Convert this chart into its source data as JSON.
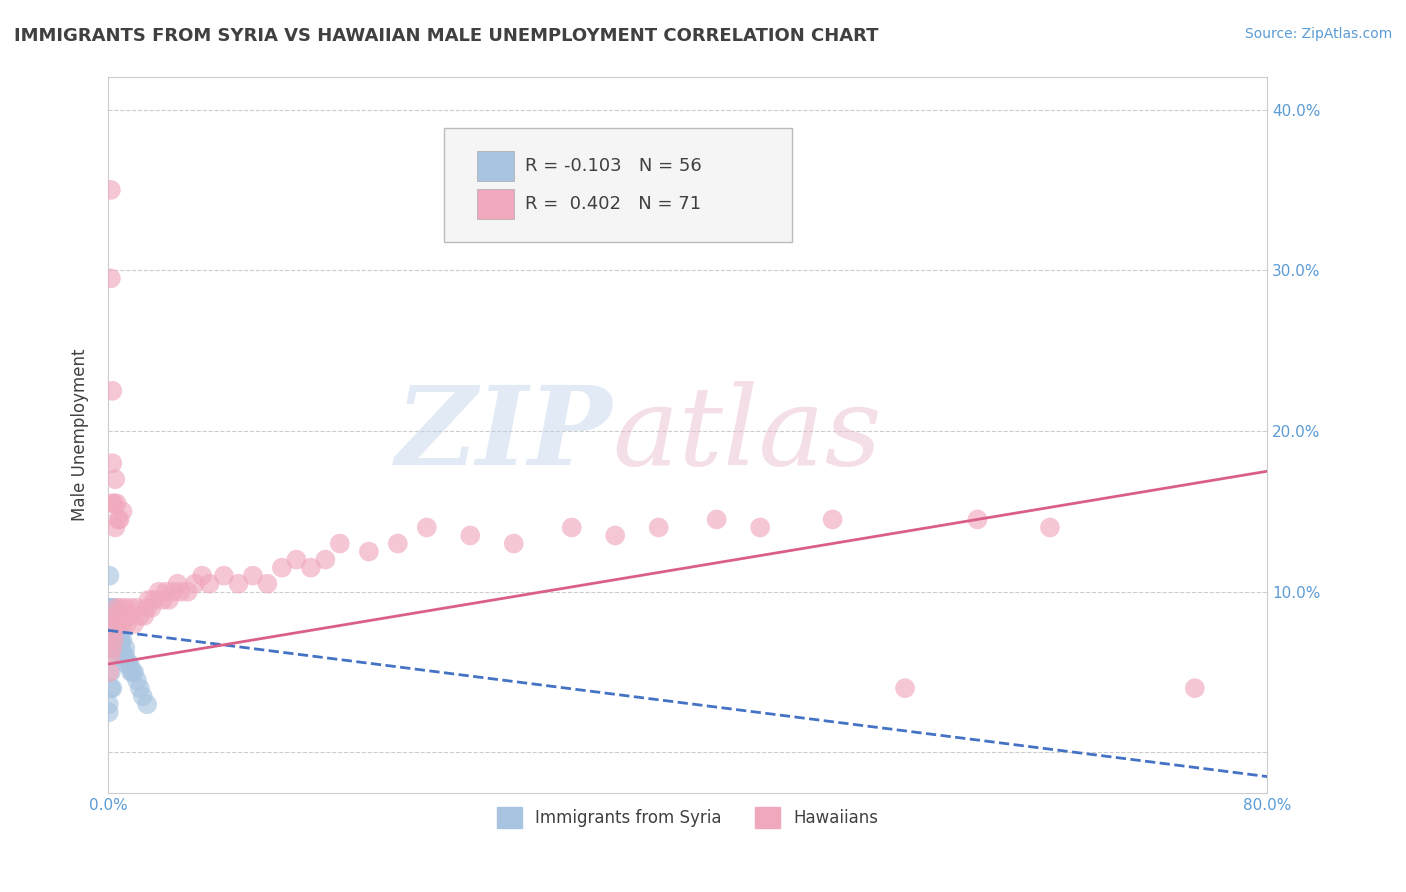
{
  "title": "IMMIGRANTS FROM SYRIA VS HAWAIIAN MALE UNEMPLOYMENT CORRELATION CHART",
  "source": "Source: ZipAtlas.com",
  "ylabel": "Male Unemployment",
  "legend_labels": [
    "Immigrants from Syria",
    "Hawaiians"
  ],
  "legend_R": [
    -0.103,
    0.402
  ],
  "legend_N": [
    56,
    71
  ],
  "blue_color": "#a8c4e0",
  "pink_color": "#f0a8bc",
  "blue_line_color": "#4472c4",
  "pink_line_color": "#d95f8a",
  "axis_label_color": "#5b9bd5",
  "title_color": "#404040",
  "xlim": [
    0,
    0.8
  ],
  "ylim": [
    -0.025,
    0.42
  ],
  "xtick_positions": [
    0.0,
    0.8
  ],
  "xtick_labels": [
    "0.0%",
    "80.0%"
  ],
  "ytick_right_positions": [
    0.0,
    0.1,
    0.2,
    0.3,
    0.4
  ],
  "ytick_right_labels": [
    "",
    "10.0%",
    "20.0%",
    "30.0%",
    "40.0%"
  ],
  "background_color": "#ffffff",
  "grid_color": "#cccccc",
  "blue_x": [
    0.0005,
    0.001,
    0.001,
    0.0015,
    0.002,
    0.002,
    0.002,
    0.0025,
    0.003,
    0.003,
    0.003,
    0.003,
    0.003,
    0.003,
    0.004,
    0.004,
    0.004,
    0.004,
    0.004,
    0.005,
    0.005,
    0.005,
    0.005,
    0.006,
    0.006,
    0.006,
    0.007,
    0.007,
    0.007,
    0.007,
    0.008,
    0.008,
    0.008,
    0.009,
    0.009,
    0.01,
    0.01,
    0.011,
    0.012,
    0.012,
    0.013,
    0.014,
    0.015,
    0.016,
    0.017,
    0.018,
    0.02,
    0.022,
    0.024,
    0.027,
    0.001,
    0.002,
    0.002,
    0.003,
    0.0005,
    0.0005
  ],
  "blue_y": [
    0.08,
    0.085,
    0.09,
    0.08,
    0.07,
    0.08,
    0.09,
    0.085,
    0.065,
    0.07,
    0.075,
    0.08,
    0.085,
    0.09,
    0.065,
    0.07,
    0.075,
    0.08,
    0.09,
    0.065,
    0.07,
    0.08,
    0.085,
    0.065,
    0.075,
    0.085,
    0.06,
    0.07,
    0.075,
    0.08,
    0.065,
    0.07,
    0.075,
    0.065,
    0.07,
    0.06,
    0.07,
    0.06,
    0.06,
    0.065,
    0.055,
    0.055,
    0.055,
    0.05,
    0.05,
    0.05,
    0.045,
    0.04,
    0.035,
    0.03,
    0.11,
    0.04,
    0.05,
    0.04,
    0.03,
    0.025
  ],
  "pink_x": [
    0.001,
    0.002,
    0.003,
    0.004,
    0.004,
    0.005,
    0.005,
    0.006,
    0.007,
    0.008,
    0.009,
    0.01,
    0.012,
    0.013,
    0.015,
    0.016,
    0.018,
    0.02,
    0.022,
    0.025,
    0.027,
    0.028,
    0.03,
    0.032,
    0.035,
    0.038,
    0.04,
    0.042,
    0.045,
    0.048,
    0.05,
    0.055,
    0.06,
    0.065,
    0.07,
    0.08,
    0.09,
    0.1,
    0.11,
    0.12,
    0.13,
    0.14,
    0.15,
    0.16,
    0.18,
    0.2,
    0.22,
    0.25,
    0.28,
    0.32,
    0.35,
    0.38,
    0.42,
    0.45,
    0.5,
    0.55,
    0.6,
    0.65,
    0.003,
    0.005,
    0.002,
    0.002,
    0.003,
    0.003,
    0.004,
    0.005,
    0.006,
    0.007,
    0.008,
    0.01,
    0.75
  ],
  "pink_y": [
    0.05,
    0.06,
    0.065,
    0.07,
    0.075,
    0.08,
    0.085,
    0.09,
    0.08,
    0.085,
    0.09,
    0.08,
    0.09,
    0.08,
    0.085,
    0.09,
    0.08,
    0.09,
    0.085,
    0.085,
    0.09,
    0.095,
    0.09,
    0.095,
    0.1,
    0.095,
    0.1,
    0.095,
    0.1,
    0.105,
    0.1,
    0.1,
    0.105,
    0.11,
    0.105,
    0.11,
    0.105,
    0.11,
    0.105,
    0.115,
    0.12,
    0.115,
    0.12,
    0.13,
    0.125,
    0.13,
    0.14,
    0.135,
    0.13,
    0.14,
    0.135,
    0.14,
    0.145,
    0.14,
    0.145,
    0.04,
    0.145,
    0.14,
    0.18,
    0.17,
    0.35,
    0.295,
    0.155,
    0.225,
    0.155,
    0.14,
    0.155,
    0.145,
    0.145,
    0.15,
    0.04
  ],
  "blue_trend_x": [
    0.0,
    0.8
  ],
  "blue_trend_y_start": 0.076,
  "blue_trend_y_end": -0.015,
  "pink_trend_x": [
    0.0,
    0.8
  ],
  "pink_trend_y_start": 0.055,
  "pink_trend_y_end": 0.175
}
